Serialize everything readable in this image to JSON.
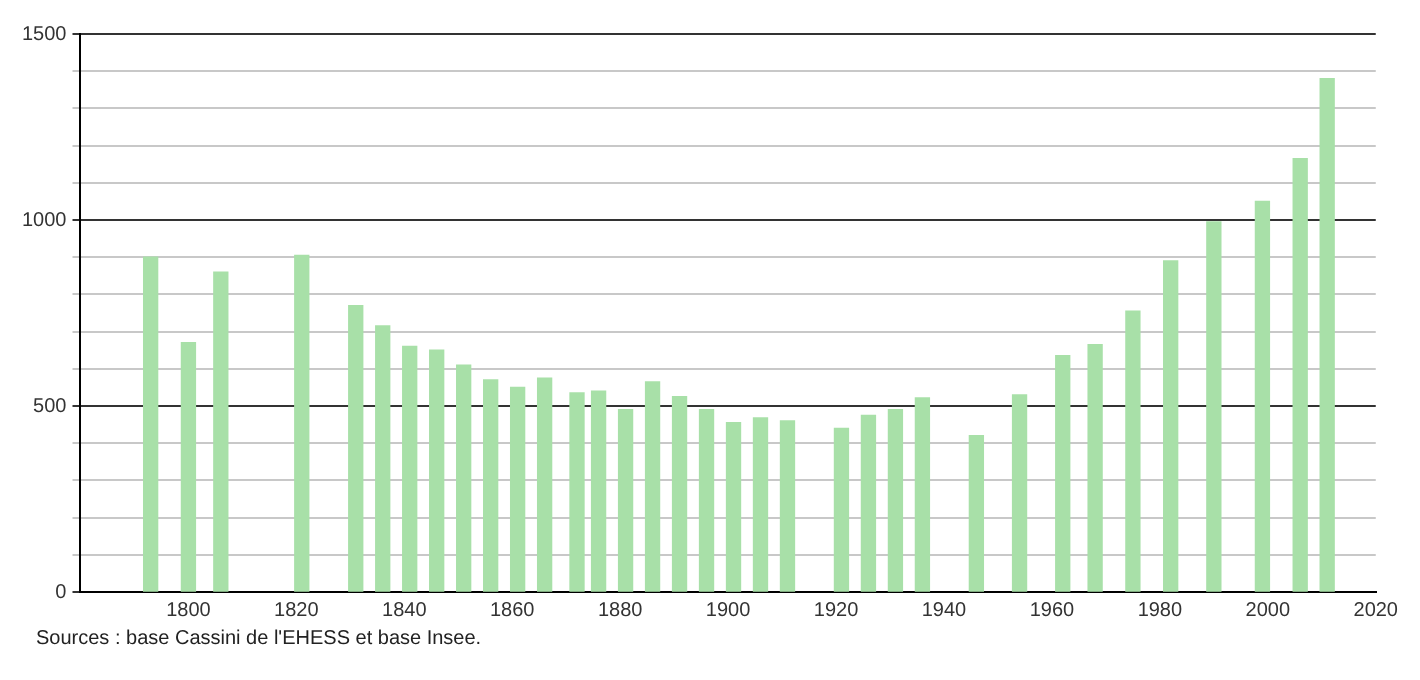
{
  "chart_data": {
    "type": "bar",
    "x": [
      1793,
      1800,
      1806,
      1821,
      1831,
      1836,
      1841,
      1846,
      1851,
      1856,
      1861,
      1866,
      1872,
      1876,
      1881,
      1886,
      1891,
      1896,
      1901,
      1906,
      1911,
      1921,
      1926,
      1931,
      1936,
      1946,
      1954,
      1962,
      1968,
      1975,
      1982,
      1990,
      1999,
      2006,
      2011
    ],
    "values": [
      900,
      670,
      860,
      905,
      770,
      715,
      660,
      650,
      610,
      570,
      550,
      575,
      535,
      540,
      490,
      565,
      525,
      490,
      455,
      468,
      460,
      440,
      475,
      490,
      522,
      420,
      530,
      635,
      665,
      755,
      890,
      995,
      1050,
      1165,
      1380
    ],
    "color": "#a8e0a8",
    "xlim": [
      1780,
      2020
    ],
    "xticks": [
      1800,
      1820,
      1840,
      1860,
      1880,
      1900,
      1920,
      1940,
      1960,
      1980,
      2000,
      2020
    ],
    "ylim": [
      0,
      1500
    ],
    "yticks": [
      0,
      {
        "value": 100,
        "label": null
      },
      {
        "value": 200,
        "label": null
      },
      {
        "value": 300,
        "label": null
      },
      {
        "value": 400,
        "label": null
      },
      500,
      {
        "value": 600,
        "label": null
      },
      {
        "value": 700,
        "label": null
      },
      {
        "value": 800,
        "label": null
      },
      {
        "value": 900,
        "label": null
      },
      1000,
      {
        "value": 1100,
        "label": null
      },
      {
        "value": 1200,
        "label": null
      },
      {
        "value": 1300,
        "label": null
      },
      {
        "value": 1400,
        "label": null
      },
      1500
    ],
    "grid": "y",
    "legend": false,
    "annotations": [
      "Sources : base Cassini de l'EHESS et base Insee."
    ]
  }
}
